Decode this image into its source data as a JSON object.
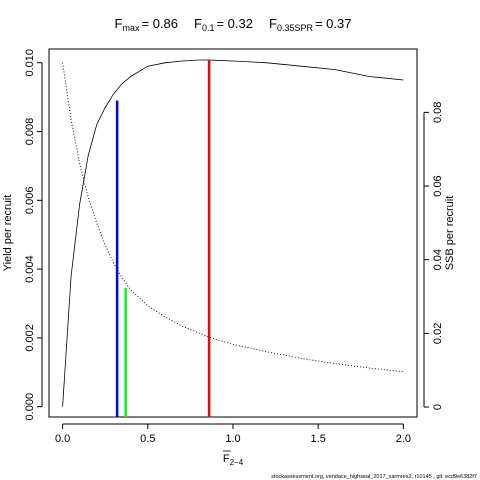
{
  "chart_data": {
    "type": "line",
    "title_parts": [
      {
        "base": "F",
        "sub": "max",
        "value": "= 0.86"
      },
      {
        "base": "F",
        "sub": "0.1",
        "value": "= 0.32"
      },
      {
        "base": "F",
        "sub": "0.35SPR",
        "value": "= 0.37"
      }
    ],
    "xlabel": {
      "base": "F",
      "overline": true,
      "sub": "2−4"
    },
    "ylabel_left": "Yield per recruit",
    "ylabel_right": "SSB per recruit",
    "footer": "stockassessment.org,  vendace_highseal_2017_sarmres2,  r10145 ,  git: ecd9e6382f7",
    "xlim": [
      -0.08,
      2.08
    ],
    "ylim_left": [
      -0.0003,
      0.0104
    ],
    "ylim_right": [
      -0.0027,
      0.0972
    ],
    "x_ticks": [
      {
        "value": 0.0,
        "label": "0.0"
      },
      {
        "value": 0.5,
        "label": "0.5"
      },
      {
        "value": 1.0,
        "label": "1.0"
      },
      {
        "value": 1.5,
        "label": "1.5"
      },
      {
        "value": 2.0,
        "label": "2.0"
      }
    ],
    "y_left_ticks": [
      {
        "value": 0.0,
        "label": "0.000"
      },
      {
        "value": 0.002,
        "label": "0.002"
      },
      {
        "value": 0.004,
        "label": "0.004"
      },
      {
        "value": 0.006,
        "label": "0.006"
      },
      {
        "value": 0.008,
        "label": "0.008"
      },
      {
        "value": 0.01,
        "label": "0.010"
      }
    ],
    "y_right_ticks": [
      {
        "value": 0.0,
        "label": "0"
      },
      {
        "value": 0.02,
        "label": "0.02"
      },
      {
        "value": 0.04,
        "label": "0.04"
      },
      {
        "value": 0.06,
        "label": "0.06"
      },
      {
        "value": 0.08,
        "label": "0.08"
      }
    ],
    "series": [
      {
        "axis": "left",
        "line_style": "solid",
        "x": [
          0,
          0.05,
          0.1,
          0.15,
          0.2,
          0.25,
          0.3,
          0.35,
          0.4,
          0.5,
          0.6,
          0.7,
          0.8,
          0.86,
          0.9,
          1.0,
          1.2,
          1.4,
          1.6,
          1.8,
          2.0
        ],
        "y": [
          0.0,
          0.0038,
          0.0059,
          0.0073,
          0.0082,
          0.0087,
          0.0091,
          0.0094,
          0.0096,
          0.0099,
          0.01,
          0.01005,
          0.01008,
          0.01008,
          0.01007,
          0.01005,
          0.01,
          0.0099,
          0.0098,
          0.0096,
          0.0095
        ]
      },
      {
        "axis": "right",
        "line_style": "dotted",
        "x": [
          0,
          0.05,
          0.1,
          0.15,
          0.2,
          0.25,
          0.3,
          0.35,
          0.4,
          0.5,
          0.6,
          0.7,
          0.8,
          0.86,
          0.9,
          1.0,
          1.2,
          1.4,
          1.6,
          1.8,
          2.0
        ],
        "y": [
          0.0935,
          0.078,
          0.066,
          0.057,
          0.05,
          0.044,
          0.039,
          0.035,
          0.0318,
          0.0275,
          0.0245,
          0.022,
          0.0201,
          0.019,
          0.0184,
          0.017,
          0.015,
          0.0132,
          0.0118,
          0.0106,
          0.0096
        ]
      }
    ],
    "reference_lines": [
      {
        "x": 0.32,
        "y_top": 0.0089,
        "color": "#0000ff"
      },
      {
        "x": 0.37,
        "y_top": 0.00345,
        "color": "#00ff00"
      },
      {
        "x": 0.86,
        "y_top": 0.01008,
        "color": "#ff0000"
      }
    ]
  }
}
